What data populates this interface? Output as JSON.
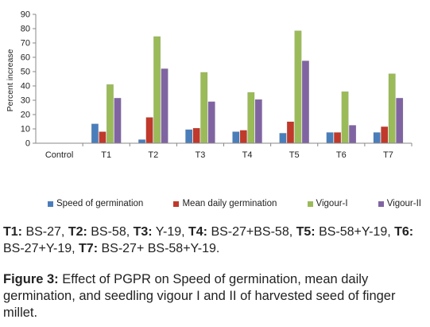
{
  "chart_data": {
    "type": "bar",
    "title": "",
    "xlabel": "",
    "ylabel": "Percent increase",
    "ylim": [
      0,
      90
    ],
    "yticks": [
      0,
      10,
      20,
      30,
      40,
      50,
      60,
      70,
      80,
      90
    ],
    "grid": false,
    "legend_position": "bottom",
    "categories": [
      "Control",
      "T1",
      "T2",
      "T3",
      "T4",
      "T5",
      "T6",
      "T7"
    ],
    "series": [
      {
        "name": "Speed of germination",
        "color": "#4a7ebb",
        "values": [
          0,
          13.5,
          2.5,
          9.5,
          8,
          7,
          7.5,
          7.5
        ]
      },
      {
        "name": "Mean daily germination",
        "color": "#c0392b",
        "values": [
          0,
          8,
          18,
          10.5,
          9,
          15,
          7.5,
          11.5
        ]
      },
      {
        "name": "Vigour-I",
        "color": "#9bbb59",
        "values": [
          0,
          41,
          74.5,
          49.5,
          35.5,
          78.5,
          36,
          48.5
        ]
      },
      {
        "name": "Vigour-II",
        "color": "#8064a2",
        "values": [
          0,
          31.5,
          52,
          29,
          30.5,
          57.5,
          12.5,
          31.5
        ]
      }
    ]
  },
  "treatments": [
    {
      "label": "T1:",
      "text": "BS-27,"
    },
    {
      "label": "T2:",
      "text": "BS-58,"
    },
    {
      "label": "T3:",
      "text": "Y-19,"
    },
    {
      "label": "T4:",
      "text": "BS-27+BS-58,"
    },
    {
      "label": "T5:",
      "text": "BS-58+Y-19,"
    },
    {
      "label": "T6:",
      "text": "BS-27+Y-19,"
    },
    {
      "label": "T7:",
      "text": "BS-27+ BS-58+Y-19."
    }
  ],
  "caption": {
    "label": "Figure 3:",
    "text": "Effect of PGPR on Speed of germination, mean daily germination, and seedling vigour I and II of harvested seed of finger millet."
  }
}
